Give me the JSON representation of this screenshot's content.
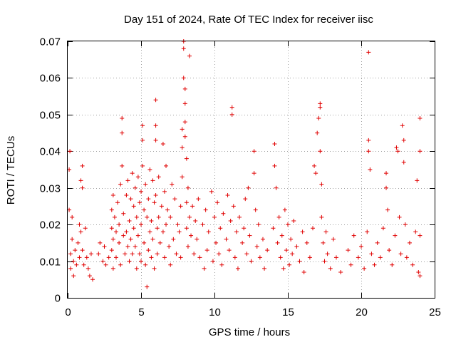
{
  "chart_data": {
    "type": "scatter",
    "title": "Day 151 of 2024, Rate Of TEC Index for receiver iisc",
    "xlabel": "GPS time / hours",
    "ylabel": "ROTI / TECUs",
    "xlim": [
      0,
      25
    ],
    "ylim": [
      0,
      0.07
    ],
    "xticks": [
      0,
      5,
      10,
      15,
      20,
      25
    ],
    "xtick_labels": [
      "0",
      "5",
      "10",
      "15",
      "20",
      "25"
    ],
    "yticks": [
      0,
      0.01,
      0.02,
      0.03,
      0.04,
      0.05,
      0.06,
      0.07
    ],
    "ytick_labels": [
      "0",
      "0.01",
      "0.02",
      "0.03",
      "0.04",
      "0.05",
      "0.06",
      "0.07"
    ],
    "grid": true,
    "marker": "plus",
    "color": "#e00000",
    "series": [
      {
        "points": [
          [
            0.1,
            0.024
          ],
          [
            0.1,
            0.035
          ],
          [
            0.15,
            0.04
          ],
          [
            0.2,
            0.012
          ],
          [
            0.2,
            0.008
          ],
          [
            0.3,
            0.016
          ],
          [
            0.3,
            0.022
          ],
          [
            0.4,
            0.01
          ],
          [
            0.4,
            0.006
          ],
          [
            0.5,
            0.013
          ],
          [
            0.6,
            0.009
          ],
          [
            0.7,
            0.015
          ],
          [
            0.8,
            0.02
          ],
          [
            0.8,
            0.011
          ],
          [
            0.9,
            0.018
          ],
          [
            0.9,
            0.032
          ],
          [
            1.0,
            0.036
          ],
          [
            1.0,
            0.03
          ],
          [
            1.0,
            0.013
          ],
          [
            1.1,
            0.009
          ],
          [
            1.2,
            0.019
          ],
          [
            1.3,
            0.011
          ],
          [
            1.4,
            0.008
          ],
          [
            1.5,
            0.006
          ],
          [
            1.6,
            0.012
          ],
          [
            1.7,
            0.005
          ],
          [
            2.1,
            0.012
          ],
          [
            2.2,
            0.015
          ],
          [
            2.4,
            0.01
          ],
          [
            2.5,
            0.014
          ],
          [
            2.6,
            0.009
          ],
          [
            2.8,
            0.011
          ],
          [
            3.0,
            0.024
          ],
          [
            3.0,
            0.019
          ],
          [
            3.0,
            0.013
          ],
          [
            3.1,
            0.028
          ],
          [
            3.1,
            0.016
          ],
          [
            3.1,
            0.008
          ],
          [
            3.2,
            0.022
          ],
          [
            3.3,
            0.018
          ],
          [
            3.3,
            0.011
          ],
          [
            3.4,
            0.026
          ],
          [
            3.5,
            0.02
          ],
          [
            3.5,
            0.015
          ],
          [
            3.6,
            0.031
          ],
          [
            3.6,
            0.009
          ],
          [
            3.7,
            0.036
          ],
          [
            3.7,
            0.045
          ],
          [
            3.7,
            0.049
          ],
          [
            3.8,
            0.017
          ],
          [
            3.8,
            0.023
          ],
          [
            3.9,
            0.012
          ],
          [
            4.0,
            0.028
          ],
          [
            4.0,
            0.018
          ],
          [
            4.1,
            0.032
          ],
          [
            4.1,
            0.014
          ],
          [
            4.2,
            0.021
          ],
          [
            4.2,
            0.01
          ],
          [
            4.3,
            0.027
          ],
          [
            4.3,
            0.016
          ],
          [
            4.4,
            0.034
          ],
          [
            4.4,
            0.012
          ],
          [
            4.5,
            0.025
          ],
          [
            4.5,
            0.019
          ],
          [
            4.6,
            0.03
          ],
          [
            4.6,
            0.014
          ],
          [
            4.7,
            0.022
          ],
          [
            4.7,
            0.008
          ],
          [
            4.8,
            0.033
          ],
          [
            4.8,
            0.017
          ],
          [
            4.9,
            0.026
          ],
          [
            4.9,
            0.012
          ],
          [
            5.0,
            0.029
          ],
          [
            5.0,
            0.02
          ],
          [
            5.0,
            0.01
          ],
          [
            5.1,
            0.047
          ],
          [
            5.1,
            0.043
          ],
          [
            5.1,
            0.036
          ],
          [
            5.2,
            0.024
          ],
          [
            5.2,
            0.015
          ],
          [
            5.3,
            0.031
          ],
          [
            5.3,
            0.009
          ],
          [
            5.4,
            0.022
          ],
          [
            5.4,
            0.003
          ],
          [
            5.5,
            0.027
          ],
          [
            5.5,
            0.013
          ],
          [
            5.6,
            0.035
          ],
          [
            5.6,
            0.018
          ],
          [
            5.7,
            0.021
          ],
          [
            5.7,
            0.011
          ],
          [
            5.8,
            0.032
          ],
          [
            5.8,
            0.016
          ],
          [
            5.9,
            0.026
          ],
          [
            5.9,
            0.008
          ],
          [
            6.0,
            0.028
          ],
          [
            6.0,
            0.054
          ],
          [
            6.0,
            0.047
          ],
          [
            6.0,
            0.043
          ],
          [
            6.1,
            0.019
          ],
          [
            6.1,
            0.012
          ],
          [
            6.2,
            0.033
          ],
          [
            6.2,
            0.022
          ],
          [
            6.3,
            0.015
          ],
          [
            6.4,
            0.025
          ],
          [
            6.5,
            0.042
          ],
          [
            6.5,
            0.018
          ],
          [
            6.6,
            0.029
          ],
          [
            6.6,
            0.011
          ],
          [
            6.7,
            0.036
          ],
          [
            6.7,
            0.02
          ],
          [
            6.8,
            0.024
          ],
          [
            6.9,
            0.014
          ],
          [
            7.0,
            0.022
          ],
          [
            7.0,
            0.009
          ],
          [
            7.1,
            0.031
          ],
          [
            7.2,
            0.016
          ],
          [
            7.3,
            0.027
          ],
          [
            7.4,
            0.012
          ],
          [
            7.5,
            0.02
          ],
          [
            7.6,
            0.018
          ],
          [
            7.7,
            0.025
          ],
          [
            7.7,
            0.011
          ],
          [
            7.8,
            0.033
          ],
          [
            7.8,
            0.041
          ],
          [
            7.8,
            0.046
          ],
          [
            7.9,
            0.07
          ],
          [
            7.9,
            0.068
          ],
          [
            7.9,
            0.06
          ],
          [
            8.0,
            0.057
          ],
          [
            8.0,
            0.053
          ],
          [
            8.0,
            0.048
          ],
          [
            8.0,
            0.044
          ],
          [
            8.1,
            0.038
          ],
          [
            8.1,
            0.026
          ],
          [
            8.1,
            0.019
          ],
          [
            8.2,
            0.03
          ],
          [
            8.2,
            0.014
          ],
          [
            8.3,
            0.066
          ],
          [
            8.3,
            0.022
          ],
          [
            8.4,
            0.017
          ],
          [
            8.5,
            0.025
          ],
          [
            8.6,
            0.012
          ],
          [
            8.7,
            0.021
          ],
          [
            8.8,
            0.016
          ],
          [
            8.9,
            0.027
          ],
          [
            9.0,
            0.011
          ],
          [
            9.2,
            0.02
          ],
          [
            9.3,
            0.008
          ],
          [
            9.4,
            0.024
          ],
          [
            9.5,
            0.013
          ],
          [
            9.6,
            0.018
          ],
          [
            9.8,
            0.029
          ],
          [
            9.9,
            0.01
          ],
          [
            10.0,
            0.022
          ],
          [
            10.1,
            0.015
          ],
          [
            10.2,
            0.026
          ],
          [
            10.3,
            0.012
          ],
          [
            10.4,
            0.019
          ],
          [
            10.5,
            0.009
          ],
          [
            10.6,
            0.023
          ],
          [
            10.8,
            0.016
          ],
          [
            10.9,
            0.028
          ],
          [
            11.0,
            0.013
          ],
          [
            11.1,
            0.021
          ],
          [
            11.2,
            0.052
          ],
          [
            11.2,
            0.05
          ],
          [
            11.3,
            0.025
          ],
          [
            11.4,
            0.011
          ],
          [
            11.5,
            0.018
          ],
          [
            11.6,
            0.008
          ],
          [
            11.7,
            0.022
          ],
          [
            11.9,
            0.015
          ],
          [
            12.0,
            0.019
          ],
          [
            12.1,
            0.027
          ],
          [
            12.2,
            0.012
          ],
          [
            12.3,
            0.03
          ],
          [
            12.4,
            0.017
          ],
          [
            12.5,
            0.01
          ],
          [
            12.7,
            0.04
          ],
          [
            12.7,
            0.034
          ],
          [
            12.8,
            0.024
          ],
          [
            12.9,
            0.014
          ],
          [
            13.0,
            0.02
          ],
          [
            13.1,
            0.011
          ],
          [
            13.3,
            0.016
          ],
          [
            13.4,
            0.008
          ],
          [
            13.6,
            0.013
          ],
          [
            14.0,
            0.019
          ],
          [
            14.1,
            0.042
          ],
          [
            14.1,
            0.036
          ],
          [
            14.2,
            0.03
          ],
          [
            14.3,
            0.015
          ],
          [
            14.4,
            0.022
          ],
          [
            14.5,
            0.011
          ],
          [
            14.6,
            0.017
          ],
          [
            14.7,
            0.008
          ],
          [
            14.8,
            0.024
          ],
          [
            14.9,
            0.013
          ],
          [
            15.0,
            0.02
          ],
          [
            15.1,
            0.009
          ],
          [
            15.2,
            0.016
          ],
          [
            15.3,
            0.012
          ],
          [
            15.4,
            0.021
          ],
          [
            15.6,
            0.014
          ],
          [
            15.8,
            0.01
          ],
          [
            16.0,
            0.018
          ],
          [
            16.1,
            0.007
          ],
          [
            16.3,
            0.015
          ],
          [
            16.5,
            0.011
          ],
          [
            16.7,
            0.019
          ],
          [
            16.8,
            0.036
          ],
          [
            16.9,
            0.034
          ],
          [
            17.0,
            0.045
          ],
          [
            17.1,
            0.049
          ],
          [
            17.2,
            0.053
          ],
          [
            17.2,
            0.052
          ],
          [
            17.2,
            0.04
          ],
          [
            17.3,
            0.031
          ],
          [
            17.3,
            0.022
          ],
          [
            17.4,
            0.015
          ],
          [
            17.5,
            0.01
          ],
          [
            17.6,
            0.018
          ],
          [
            17.7,
            0.012
          ],
          [
            17.9,
            0.008
          ],
          [
            18.1,
            0.016
          ],
          [
            18.3,
            0.011
          ],
          [
            18.6,
            0.007
          ],
          [
            19.1,
            0.013
          ],
          [
            19.3,
            0.009
          ],
          [
            19.5,
            0.017
          ],
          [
            19.8,
            0.011
          ],
          [
            20.0,
            0.014
          ],
          [
            20.2,
            0.008
          ],
          [
            20.4,
            0.018
          ],
          [
            20.5,
            0.067
          ],
          [
            20.5,
            0.043
          ],
          [
            20.5,
            0.04
          ],
          [
            20.6,
            0.035
          ],
          [
            20.7,
            0.012
          ],
          [
            20.9,
            0.009
          ],
          [
            21.1,
            0.015
          ],
          [
            21.3,
            0.011
          ],
          [
            21.5,
            0.019
          ],
          [
            21.7,
            0.034
          ],
          [
            21.7,
            0.03
          ],
          [
            21.8,
            0.024
          ],
          [
            21.9,
            0.013
          ],
          [
            22.1,
            0.009
          ],
          [
            22.3,
            0.017
          ],
          [
            22.4,
            0.041
          ],
          [
            22.5,
            0.04
          ],
          [
            22.6,
            0.022
          ],
          [
            22.7,
            0.012
          ],
          [
            22.8,
            0.047
          ],
          [
            22.9,
            0.043
          ],
          [
            22.9,
            0.037
          ],
          [
            23.0,
            0.02
          ],
          [
            23.1,
            0.011
          ],
          [
            23.3,
            0.015
          ],
          [
            23.5,
            0.009
          ],
          [
            23.7,
            0.018
          ],
          [
            23.8,
            0.032
          ],
          [
            23.9,
            0.007
          ],
          [
            24.0,
            0.049
          ],
          [
            24.0,
            0.04
          ],
          [
            24.0,
            0.017
          ],
          [
            24.0,
            0.006
          ]
        ]
      }
    ]
  }
}
